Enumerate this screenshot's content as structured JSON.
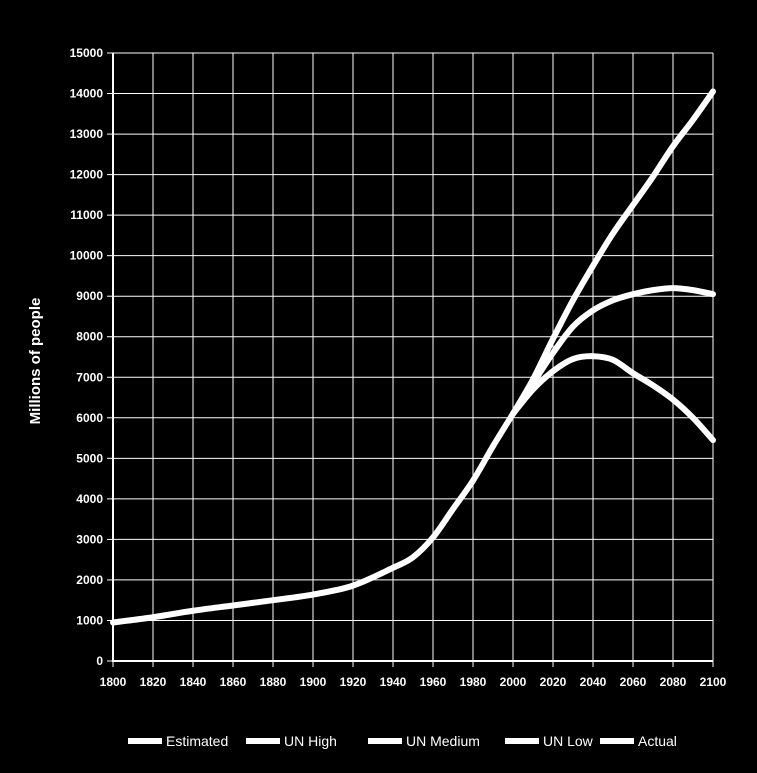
{
  "chart_data": {
    "type": "line",
    "ylabel": "Millions of people",
    "xlabel": "",
    "xlim": [
      1800,
      2100
    ],
    "ylim": [
      0,
      15000
    ],
    "x_ticks": [
      "1800",
      "1820",
      "1840",
      "1860",
      "1880",
      "1900",
      "1920",
      "1940",
      "1960",
      "1980",
      "2000",
      "2020",
      "2040",
      "2060",
      "2080",
      "2100"
    ],
    "y_ticks": [
      "0",
      "1000",
      "2000",
      "3000",
      "4000",
      "5000",
      "6000",
      "7000",
      "8000",
      "9000",
      "10000",
      "11000",
      "12000",
      "13000",
      "14000",
      "15000"
    ],
    "grid": true,
    "legend_position": "bottom",
    "colors": {
      "background": "#000000",
      "line": "#ffffff",
      "grid": "#ffffff",
      "text": "#ffffff"
    },
    "series": [
      {
        "name": "Estimated",
        "points": [
          [
            1800,
            950
          ],
          [
            1820,
            1080
          ],
          [
            1840,
            1240
          ],
          [
            1860,
            1370
          ],
          [
            1880,
            1500
          ],
          [
            1900,
            1640
          ],
          [
            1920,
            1860
          ],
          [
            1940,
            2300
          ],
          [
            1950,
            2560
          ],
          [
            1960,
            3050
          ],
          [
            1970,
            3750
          ],
          [
            1980,
            4450
          ],
          [
            1990,
            5300
          ],
          [
            2000,
            6100
          ]
        ]
      },
      {
        "name": "UN High",
        "points": [
          [
            2000,
            6100
          ],
          [
            2010,
            6950
          ],
          [
            2020,
            7950
          ],
          [
            2030,
            8900
          ],
          [
            2040,
            9750
          ],
          [
            2050,
            10550
          ],
          [
            2060,
            11250
          ],
          [
            2070,
            11950
          ],
          [
            2080,
            12700
          ],
          [
            2090,
            13350
          ],
          [
            2100,
            14050
          ]
        ]
      },
      {
        "name": "UN Medium",
        "points": [
          [
            2000,
            6100
          ],
          [
            2010,
            6850
          ],
          [
            2020,
            7600
          ],
          [
            2030,
            8250
          ],
          [
            2040,
            8650
          ],
          [
            2050,
            8900
          ],
          [
            2060,
            9050
          ],
          [
            2070,
            9150
          ],
          [
            2080,
            9200
          ],
          [
            2090,
            9150
          ],
          [
            2100,
            9050
          ]
        ]
      },
      {
        "name": "UN Low",
        "points": [
          [
            2000,
            6100
          ],
          [
            2010,
            6700
          ],
          [
            2020,
            7150
          ],
          [
            2030,
            7450
          ],
          [
            2040,
            7520
          ],
          [
            2050,
            7430
          ],
          [
            2060,
            7100
          ],
          [
            2070,
            6800
          ],
          [
            2080,
            6450
          ],
          [
            2090,
            6000
          ],
          [
            2100,
            5450
          ]
        ]
      },
      {
        "name": "Actual",
        "points": [
          [
            2000,
            6100
          ],
          [
            2010,
            6800
          ]
        ]
      }
    ]
  }
}
